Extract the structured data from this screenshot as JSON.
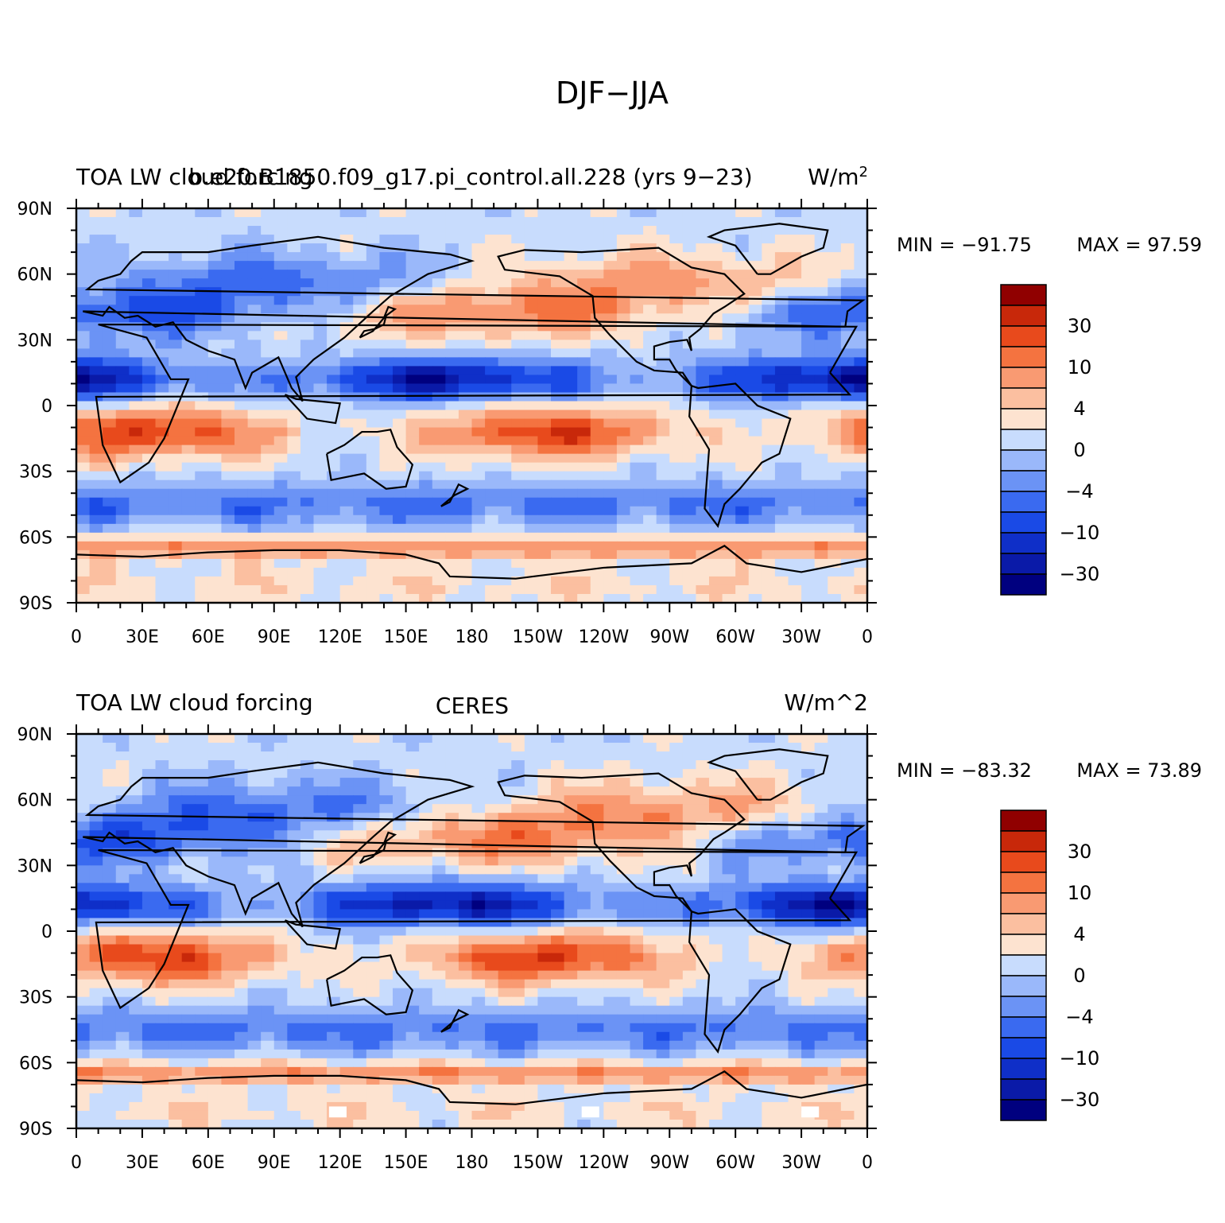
{
  "figure": {
    "title": "DJF−JJA"
  },
  "colors": [
    "#00007f",
    "#0a1aa8",
    "#0f2fc8",
    "#1a4ae6",
    "#3a6af0",
    "#6b93f5",
    "#9ab8fa",
    "#c8dcfd",
    "#fde3d0",
    "#fbbfa0",
    "#f99a72",
    "#f47340",
    "#e84a1c",
    "#c8280a",
    "#900000"
  ],
  "panels": [
    {
      "left_title": "TOA LW cloud forcing",
      "center_title": "b.e20.B1850.f09_g17.pi_control.all.228 (yrs 9−23)",
      "units": "W/m",
      "units_sup": "2",
      "min_label": "MIN = −91.75",
      "max_label": "MAX =   97.59",
      "seed": 7
    },
    {
      "left_title": "TOA LW cloud forcing",
      "center_title": "CERES",
      "units": "W/m^2",
      "units_sup": "",
      "min_label": "MIN = −83.32",
      "max_label": "MAX =   73.89",
      "seed": 19
    }
  ],
  "lat_labels": [
    "90N",
    "60N",
    "30N",
    "0",
    "30S",
    "60S",
    "90S"
  ],
  "lon_labels": [
    "0",
    "30E",
    "60E",
    "90E",
    "120E",
    "150E",
    "180",
    "150W",
    "120W",
    "90W",
    "60W",
    "30W",
    "0"
  ],
  "colorbar_labels": [
    "30",
    "10",
    "4",
    "0",
    "−4",
    "−10",
    "−30"
  ]
}
